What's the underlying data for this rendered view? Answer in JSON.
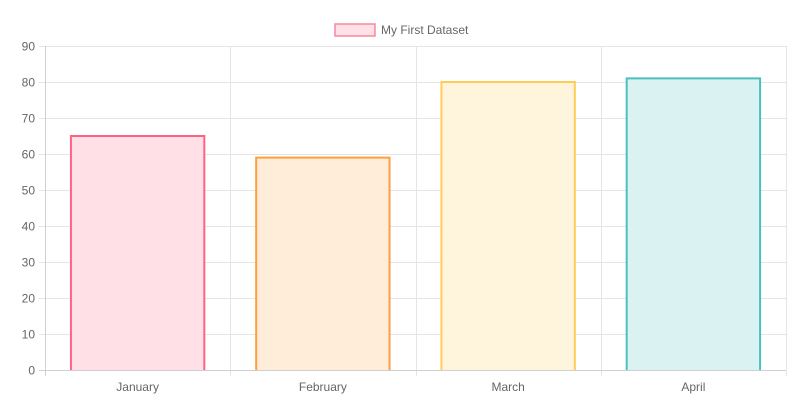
{
  "chart_data": {
    "type": "bar",
    "legend": {
      "position": "top",
      "entries": [
        {
          "label": "My First Dataset",
          "fill": "#ffe0e6",
          "stroke": "#f48aa1"
        }
      ]
    },
    "categories": [
      "January",
      "February",
      "March",
      "April"
    ],
    "series": [
      {
        "name": "My First Dataset",
        "values": [
          65,
          59,
          80,
          81
        ]
      }
    ],
    "bar_colors": [
      {
        "fill": "#ffe0e6",
        "stroke": "#ff6384"
      },
      {
        "fill": "#ffecd9",
        "stroke": "#ff9f40"
      },
      {
        "fill": "#fff5dd",
        "stroke": "#ffcd56"
      },
      {
        "fill": "#dbf2f2",
        "stroke": "#4bc0c0"
      }
    ],
    "y_ticks": [
      "0",
      "10",
      "20",
      "30",
      "40",
      "50",
      "60",
      "70",
      "80",
      "90"
    ],
    "ylim": [
      0,
      90
    ],
    "grid": true,
    "grid_color": "#e5e5e5",
    "axis_color": "#d0d0d0"
  }
}
